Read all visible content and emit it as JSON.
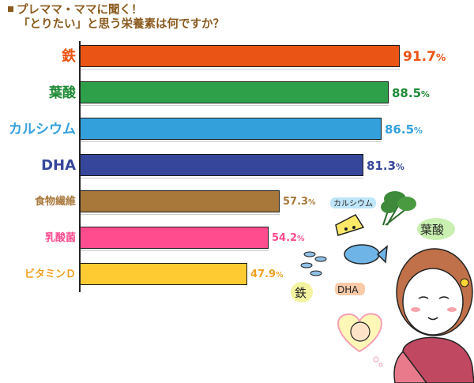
{
  "title": {
    "line1": "プレママ・ママに聞く！",
    "line2": "「とりたい」と思う栄養素は何ですか？"
  },
  "chart_data": {
    "type": "bar",
    "orientation": "horizontal",
    "title": "プレママ・ママに聞く！「とりたい」と思う栄養素は何ですか？",
    "xlabel": "",
    "ylabel": "",
    "xlim": [
      0,
      100
    ],
    "grid": false,
    "legend": "none",
    "categories": [
      "鉄",
      "葉酸",
      "カルシウム",
      "DHA",
      "食物繊維",
      "乳酸菌",
      "ビタミンＤ"
    ],
    "values": [
      91.7,
      88.5,
      86.5,
      81.3,
      57.3,
      54.2,
      47.9
    ],
    "unit": "%",
    "colors": [
      "#ea5414",
      "#2fa04a",
      "#33a0dc",
      "#36479b",
      "#a8773a",
      "#ff4c8f",
      "#fecb33"
    ],
    "label_colors": [
      "#ea5414",
      "#1e8a35",
      "#33a0dc",
      "#36479b",
      "#a8773a",
      "#ff4c8f",
      "#f0a020"
    ]
  },
  "rows": [
    {
      "label": "鉄",
      "num": "91.7",
      "pct": "%"
    },
    {
      "label": "葉酸",
      "num": "88.5",
      "pct": "%"
    },
    {
      "label": "カルシウム",
      "num": "86.5",
      "pct": "%"
    },
    {
      "label": "DHA",
      "num": "81.3",
      "pct": "%"
    },
    {
      "label": "食物繊維",
      "num": "57.3",
      "pct": "%"
    },
    {
      "label": "乳酸菌",
      "num": "54.2",
      "pct": "%"
    },
    {
      "label": "ビタミンＤ",
      "num": "47.9",
      "pct": "%"
    }
  ],
  "illustration": {
    "tags": [
      "カルシウム",
      "葉酸",
      "鉄",
      "DHA"
    ]
  }
}
